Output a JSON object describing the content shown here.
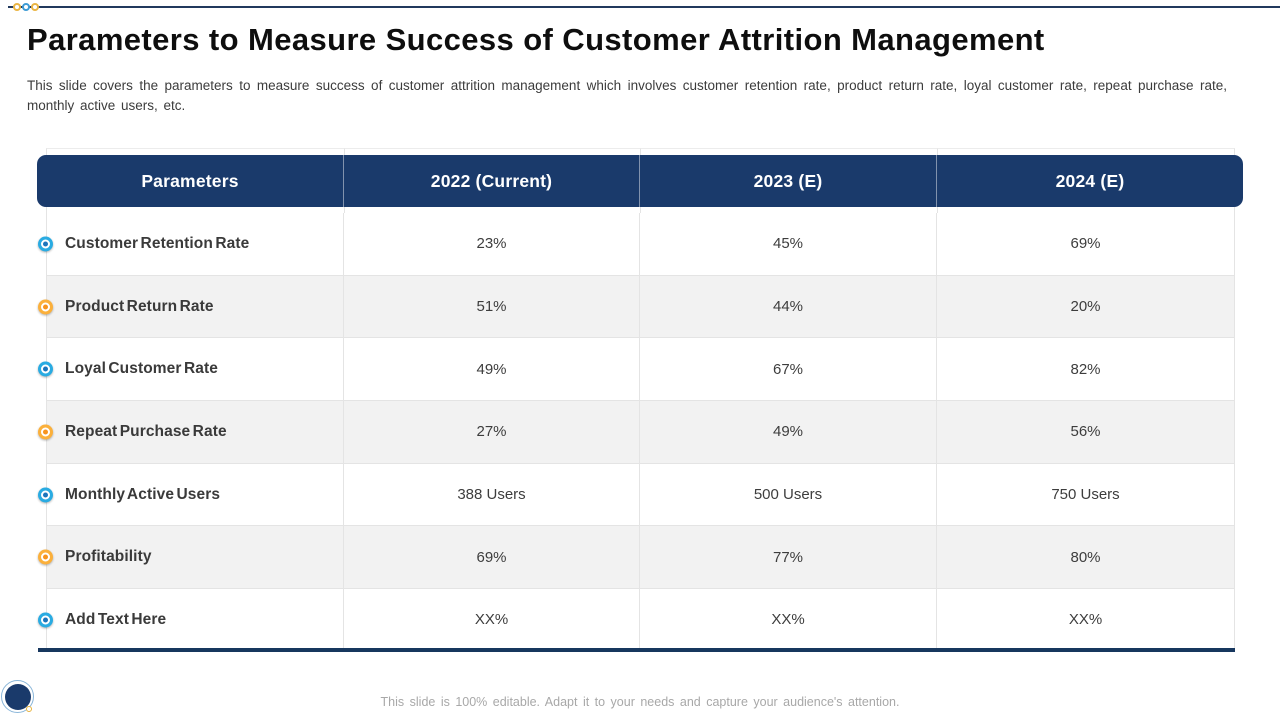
{
  "slide": {
    "title": "Parameters to Measure Success of Customer Attrition Management",
    "subtitle": "This slide covers the parameters to measure success of customer attrition management which involves customer retention rate, product return rate, loyal customer rate, repeat purchase rate, monthly active users, etc.",
    "footer": "This slide is 100% editable. Adapt it to your needs and capture your audience's attention."
  },
  "table": {
    "columns": [
      "Parameters",
      "2022 (Current)",
      "2023 (E)",
      "2024 (E)"
    ],
    "rows": [
      {
        "bullet": "blue",
        "label": "Customer Retention Rate",
        "values": [
          "23%",
          "45%",
          "69%"
        ]
      },
      {
        "bullet": "orange",
        "label": "Product Return Rate",
        "values": [
          "51%",
          "44%",
          "20%"
        ]
      },
      {
        "bullet": "blue",
        "label": "Loyal Customer Rate",
        "values": [
          "49%",
          "67%",
          "82%"
        ]
      },
      {
        "bullet": "orange",
        "label": "Repeat Purchase Rate",
        "values": [
          "27%",
          "49%",
          "56%"
        ]
      },
      {
        "bullet": "blue",
        "label": "Monthly Active Users",
        "values": [
          "388 Users",
          "500 Users",
          "750 Users"
        ]
      },
      {
        "bullet": "orange",
        "label": "Profitability",
        "values": [
          "69%",
          "77%",
          "80%"
        ]
      },
      {
        "bullet": "blue",
        "label": "Add Text Here",
        "values": [
          "XX%",
          "XX%",
          "XX%"
        ]
      }
    ]
  },
  "colors": {
    "header_navy": "#1a3a6b",
    "underline_navy": "#17375e",
    "bullet_blue_outer": "#29abe2",
    "bullet_blue_inner": "#1c75bc",
    "bullet_orange_outer": "#fbb03b",
    "bullet_orange_inner": "#f7941e",
    "row_alt_bg": "#f2f2f2",
    "grid_line": "#e4e4e4",
    "body_text": "#3d3d3d",
    "footer_gray": "#a8a8a8"
  }
}
